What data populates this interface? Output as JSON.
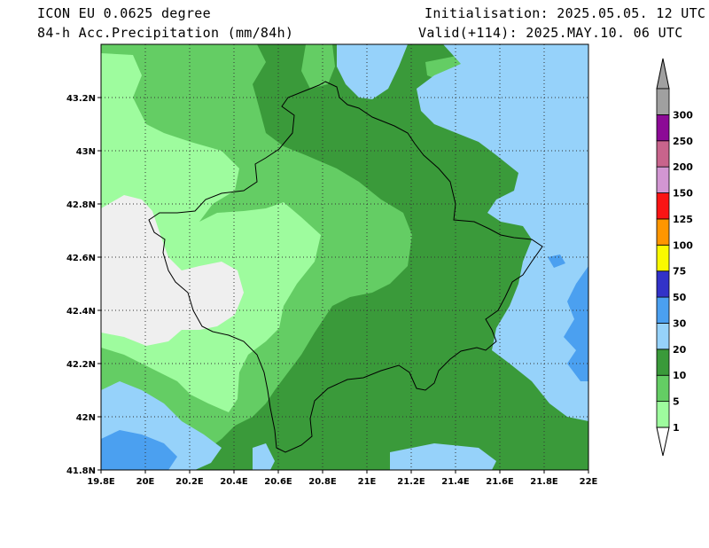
{
  "header": {
    "model": "ICON EU 0.0625 degree",
    "field": "84-h Acc.Precipitation (mm/84h)",
    "init": "Initialisation: 2025.05.05. 12 UTC",
    "valid": "Valid(+114): 2025.MAY.10. 06 UTC"
  },
  "axes": {
    "lon_labels": [
      "19.8E",
      "20E",
      "20.2E",
      "20.4E",
      "20.6E",
      "20.8E",
      "21E",
      "21.2E",
      "21.4E",
      "21.6E",
      "21.8E",
      "22E"
    ],
    "lat_labels": [
      "43.2N",
      "43N",
      "42.8N",
      "42.6N",
      "42.4N",
      "42.2N",
      "42N",
      "41.8N"
    ],
    "lon_range": [
      19.8,
      22.0
    ],
    "lat_range": [
      41.8,
      43.4
    ]
  },
  "legend": {
    "levels": [
      {
        "label": "1",
        "color": "#9efc9e"
      },
      {
        "label": "5",
        "color": "#64cd64"
      },
      {
        "label": "10",
        "color": "#3a9a3a"
      },
      {
        "label": "20",
        "color": "#96d2fa"
      },
      {
        "label": "30",
        "color": "#4ba0f0"
      },
      {
        "label": "50",
        "color": "#3232c8"
      },
      {
        "label": "75",
        "color": "#fafa00"
      },
      {
        "label": "100",
        "color": "#ff9600"
      },
      {
        "label": "125",
        "color": "#fa1414"
      },
      {
        "label": "150",
        "color": "#d296d2"
      },
      {
        "label": "200",
        "color": "#c8648c"
      },
      {
        "label": "250",
        "color": "#8c0a96"
      },
      {
        "label": "300",
        "color": "#a0a0a0"
      }
    ],
    "below_min_color": "#ffffff",
    "no_precip_color": "#efefef"
  }
}
